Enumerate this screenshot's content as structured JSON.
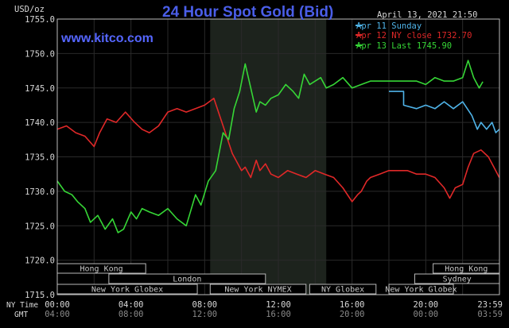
{
  "chart_data": {
    "type": "line",
    "title": "24 Hour Spot Gold (Bid)",
    "watermark": "www.kitco.com",
    "timestamp": "April 13, 2021 21:50",
    "ylabel": "USD/oz",
    "ylim": [
      1715,
      1755
    ],
    "yticks": [
      "1715.0",
      "1720.0",
      "1725.0",
      "1730.0",
      "1735.0",
      "1740.0",
      "1745.0",
      "1750.0",
      "1755.0"
    ],
    "xlim": [
      0,
      24
    ],
    "x_unit": "hours (NY time)",
    "ny_time_label": "NY Time",
    "gmt_label": "GMT",
    "xticks_ny": [
      "00:00",
      "04:00",
      "08:00",
      "12:00",
      "16:00",
      "20:00",
      "23:59"
    ],
    "xticks_gmt": [
      "04:00",
      "08:00",
      "12:00",
      "16:00",
      "20:00",
      "00:00",
      "03:59"
    ],
    "shaded_region": [
      8.3,
      14.6
    ],
    "grid": true,
    "legend_position": "top-right",
    "legend": [
      {
        "label": "Apr 11 Sunday",
        "color": "#4fb3e8"
      },
      {
        "label": "Apr 12 NY close 1732.70",
        "color": "#e02828"
      },
      {
        "label": "Apr 13 Last 1745.90",
        "color": "#36d636"
      }
    ],
    "series": [
      {
        "name": "Apr 11 Sunday",
        "color": "#4fb3e8",
        "x": [
          18.0,
          18.8,
          18.8,
          19.5,
          20.0,
          20.5,
          21.0,
          21.5,
          22.0,
          22.5,
          22.8,
          23.0,
          23.3,
          23.6,
          23.8,
          23.99
        ],
        "values": [
          1744.5,
          1744.5,
          1742.5,
          1742.0,
          1742.5,
          1742.0,
          1743.0,
          1742.0,
          1743.0,
          1741.0,
          1739.0,
          1740.0,
          1739.0,
          1740.0,
          1738.5,
          1739.0
        ]
      },
      {
        "name": "Apr 12 NY close 1732.70",
        "color": "#e02828",
        "x": [
          0.0,
          0.5,
          1.0,
          1.5,
          2.0,
          2.3,
          2.7,
          3.2,
          3.7,
          4.2,
          4.6,
          5.0,
          5.5,
          6.0,
          6.5,
          7.0,
          7.5,
          8.0,
          8.5,
          9.0,
          9.5,
          10.0,
          10.2,
          10.5,
          10.8,
          11.0,
          11.3,
          11.6,
          12.0,
          12.5,
          13.0,
          13.5,
          14.0,
          14.5,
          15.0,
          15.5,
          16.0,
          16.3,
          16.5,
          16.8,
          17.0,
          17.5,
          18.0,
          18.5,
          19.0,
          19.5,
          20.0,
          20.5,
          21.0,
          21.3,
          21.6,
          22.0,
          22.3,
          22.6,
          23.0,
          23.4,
          23.7,
          23.99
        ],
        "values": [
          1739.0,
          1739.5,
          1738.5,
          1738.0,
          1736.5,
          1738.5,
          1740.5,
          1740.0,
          1741.5,
          1740.0,
          1739.0,
          1738.5,
          1739.5,
          1741.5,
          1742.0,
          1741.5,
          1742.0,
          1742.5,
          1743.5,
          1739.5,
          1735.5,
          1733.0,
          1733.5,
          1732.0,
          1734.5,
          1733.0,
          1734.0,
          1732.5,
          1732.0,
          1733.0,
          1732.5,
          1732.0,
          1733.0,
          1732.5,
          1732.0,
          1730.5,
          1728.5,
          1729.5,
          1730.0,
          1731.5,
          1732.0,
          1732.5,
          1733.0,
          1733.0,
          1733.0,
          1732.5,
          1732.5,
          1732.0,
          1730.5,
          1729.0,
          1730.5,
          1731.0,
          1733.5,
          1735.5,
          1736.0,
          1735.0,
          1733.5,
          1732.0
        ]
      },
      {
        "name": "Apr 13 Last 1745.90",
        "color": "#36d636",
        "x": [
          0.0,
          0.4,
          0.8,
          1.1,
          1.5,
          1.8,
          2.2,
          2.6,
          3.0,
          3.3,
          3.6,
          4.0,
          4.3,
          4.6,
          5.0,
          5.5,
          6.0,
          6.5,
          7.0,
          7.5,
          7.8,
          8.2,
          8.6,
          9.0,
          9.3,
          9.6,
          9.9,
          10.2,
          10.5,
          10.8,
          11.0,
          11.3,
          11.6,
          12.0,
          12.4,
          12.8,
          13.1,
          13.4,
          13.7,
          14.0,
          14.3,
          14.6,
          15.0,
          15.5,
          16.0,
          16.5,
          17.0,
          17.5,
          18.0,
          18.5,
          19.0,
          19.5,
          20.0,
          20.5,
          21.0,
          21.5,
          22.0,
          22.3,
          22.6,
          22.9,
          23.1
        ],
        "values": [
          1731.5,
          1730.0,
          1729.5,
          1728.5,
          1727.5,
          1725.5,
          1726.5,
          1724.5,
          1726.0,
          1724.0,
          1724.5,
          1727.0,
          1726.0,
          1727.5,
          1727.0,
          1726.5,
          1727.5,
          1726.0,
          1725.0,
          1729.5,
          1728.0,
          1731.5,
          1733.0,
          1738.5,
          1737.5,
          1742.0,
          1744.5,
          1748.5,
          1745.0,
          1741.5,
          1743.0,
          1742.5,
          1743.5,
          1744.0,
          1745.5,
          1744.5,
          1743.5,
          1747.0,
          1745.5,
          1746.0,
          1746.5,
          1745.0,
          1745.5,
          1746.5,
          1745.0,
          1745.5,
          1746.0,
          1746.0,
          1746.0,
          1746.0,
          1746.0,
          1746.0,
          1745.5,
          1746.5,
          1746.0,
          1746.0,
          1746.5,
          1749.0,
          1746.5,
          1745.0,
          1745.9
        ]
      }
    ]
  },
  "sessions": [
    {
      "label": "Hong Kong",
      "start": 0.0,
      "end": 4.8,
      "row": 1
    },
    {
      "label": "London",
      "start": 2.8,
      "end": 11.3,
      "row": 2
    },
    {
      "label": "New York Globex",
      "start": 0.0,
      "end": 7.6,
      "row": 3
    },
    {
      "label": "New York NYMEX",
      "start": 8.3,
      "end": 13.5,
      "row": 3
    },
    {
      "label": "NY Globex",
      "start": 13.7,
      "end": 17.3,
      "row": 3
    },
    {
      "label": "Hong Kong",
      "start": 20.4,
      "end": 24.0,
      "row": 1
    },
    {
      "label": "Sydney",
      "start": 19.4,
      "end": 24.0,
      "row": 2
    },
    {
      "label": "New York Globex",
      "start": 18.0,
      "end": 21.5,
      "row": 3
    }
  ]
}
